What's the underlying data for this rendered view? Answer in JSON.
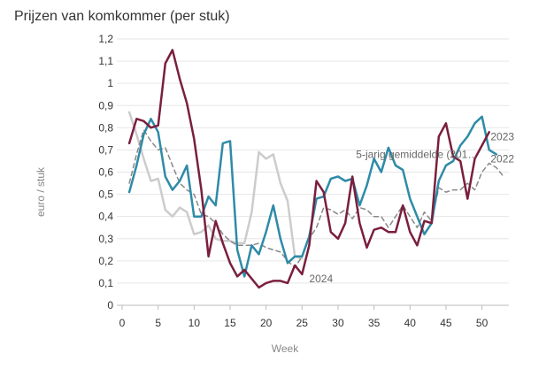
{
  "chart_data": {
    "type": "line",
    "title": "Prijzen van komkommer (per stuk)",
    "xlabel": "Week",
    "ylabel": "euro / stuk",
    "xlim": [
      0,
      53
    ],
    "ylim": [
      0,
      1.2
    ],
    "x_ticks": [
      0,
      5,
      10,
      15,
      20,
      25,
      30,
      35,
      40,
      45,
      50
    ],
    "y_ticks": [
      0,
      0.1,
      0.2,
      0.3,
      0.4,
      0.5,
      0.6,
      0.7,
      0.8,
      0.9,
      1,
      1.1,
      1.2
    ],
    "y_tick_labels": [
      "0",
      "0,1",
      "0,2",
      "0,3",
      "0,4",
      "0,5",
      "0,6",
      "0,7",
      "0,8",
      "0,9",
      "1",
      "1,1",
      "1,2"
    ],
    "grid": "horizontal",
    "legend": "direct labels",
    "series": [
      {
        "name": "2024",
        "color": "#cccccc",
        "style": "solid",
        "label_text": "2024",
        "label_at": [
          26,
          0.12
        ],
        "points": [
          [
            1,
            0.87
          ],
          [
            2,
            0.77
          ],
          [
            3,
            0.66
          ],
          [
            4,
            0.56
          ],
          [
            5,
            0.57
          ],
          [
            6,
            0.43
          ],
          [
            7,
            0.4
          ],
          [
            8,
            0.44
          ],
          [
            9,
            0.42
          ],
          [
            10,
            0.32
          ],
          [
            11,
            0.33
          ],
          [
            12,
            0.36
          ],
          [
            13,
            0.3
          ],
          [
            14,
            0.29
          ],
          [
            15,
            0.29
          ],
          [
            16,
            0.28
          ],
          [
            17,
            0.28
          ],
          [
            18,
            0.42
          ],
          [
            19,
            0.69
          ],
          [
            20,
            0.66
          ],
          [
            21,
            0.68
          ],
          [
            22,
            0.55
          ],
          [
            23,
            0.47
          ],
          [
            24,
            0.22
          ],
          [
            25,
            0.21
          ]
        ]
      },
      {
        "name": "5-jarig gemiddelde (201…",
        "color": "#888888",
        "style": "dashed",
        "label_text": "5-jarig gemiddelde (201…",
        "label_at": [
          32.5,
          0.68
        ],
        "points": [
          [
            1,
            0.55
          ],
          [
            2,
            0.68
          ],
          [
            3,
            0.79
          ],
          [
            4,
            0.74
          ],
          [
            5,
            0.7
          ],
          [
            6,
            0.71
          ],
          [
            7,
            0.63
          ],
          [
            8,
            0.55
          ],
          [
            9,
            0.52
          ],
          [
            10,
            0.5
          ],
          [
            11,
            0.41
          ],
          [
            12,
            0.4
          ],
          [
            13,
            0.37
          ],
          [
            14,
            0.32
          ],
          [
            15,
            0.29
          ],
          [
            16,
            0.27
          ],
          [
            17,
            0.27
          ],
          [
            18,
            0.27
          ],
          [
            19,
            0.28
          ],
          [
            20,
            0.26
          ],
          [
            21,
            0.25
          ],
          [
            22,
            0.24
          ],
          [
            23,
            0.2
          ],
          [
            24,
            0.17
          ],
          [
            25,
            0.22
          ],
          [
            26,
            0.3
          ],
          [
            27,
            0.35
          ],
          [
            28,
            0.44
          ],
          [
            29,
            0.43
          ],
          [
            30,
            0.41
          ],
          [
            31,
            0.43
          ],
          [
            32,
            0.39
          ],
          [
            33,
            0.44
          ],
          [
            34,
            0.43
          ],
          [
            35,
            0.4
          ],
          [
            36,
            0.4
          ],
          [
            37,
            0.35
          ],
          [
            38,
            0.4
          ],
          [
            39,
            0.45
          ],
          [
            40,
            0.4
          ],
          [
            41,
            0.35
          ],
          [
            42,
            0.42
          ],
          [
            43,
            0.38
          ],
          [
            44,
            0.53
          ],
          [
            45,
            0.51
          ],
          [
            46,
            0.52
          ],
          [
            47,
            0.52
          ],
          [
            48,
            0.55
          ],
          [
            49,
            0.52
          ],
          [
            50,
            0.6
          ],
          [
            51,
            0.64
          ],
          [
            52,
            0.62
          ],
          [
            53,
            0.58
          ]
        ]
      },
      {
        "name": "2022",
        "color": "#2e8ba8",
        "style": "solid",
        "label_text": "2022",
        "label_at": [
          51.2,
          0.66
        ],
        "points": [
          [
            1,
            0.51
          ],
          [
            2,
            0.63
          ],
          [
            3,
            0.77
          ],
          [
            4,
            0.84
          ],
          [
            5,
            0.78
          ],
          [
            6,
            0.58
          ],
          [
            7,
            0.52
          ],
          [
            8,
            0.56
          ],
          [
            9,
            0.63
          ],
          [
            10,
            0.4
          ],
          [
            11,
            0.4
          ],
          [
            12,
            0.49
          ],
          [
            13,
            0.45
          ],
          [
            14,
            0.73
          ],
          [
            15,
            0.74
          ],
          [
            16,
            0.25
          ],
          [
            17,
            0.13
          ],
          [
            18,
            0.27
          ],
          [
            19,
            0.23
          ],
          [
            20,
            0.33
          ],
          [
            21,
            0.45
          ],
          [
            22,
            0.3
          ],
          [
            23,
            0.19
          ],
          [
            24,
            0.22
          ],
          [
            25,
            0.22
          ],
          [
            26,
            0.31
          ],
          [
            27,
            0.48
          ],
          [
            28,
            0.49
          ],
          [
            29,
            0.57
          ],
          [
            30,
            0.58
          ],
          [
            31,
            0.56
          ],
          [
            32,
            0.57
          ],
          [
            33,
            0.45
          ],
          [
            34,
            0.54
          ],
          [
            35,
            0.66
          ],
          [
            36,
            0.6
          ],
          [
            37,
            0.71
          ],
          [
            38,
            0.63
          ],
          [
            39,
            0.61
          ],
          [
            40,
            0.48
          ],
          [
            41,
            0.4
          ],
          [
            42,
            0.32
          ],
          [
            43,
            0.37
          ],
          [
            44,
            0.56
          ],
          [
            45,
            0.63
          ],
          [
            46,
            0.65
          ],
          [
            47,
            0.72
          ],
          [
            48,
            0.76
          ],
          [
            49,
            0.82
          ],
          [
            50,
            0.85
          ],
          [
            51,
            0.7
          ],
          [
            52,
            0.68
          ]
        ]
      },
      {
        "name": "2023",
        "color": "#7a1f3d",
        "style": "solid",
        "label_text": "2023",
        "label_at": [
          51.2,
          0.76
        ],
        "points": [
          [
            1,
            0.73
          ],
          [
            2,
            0.84
          ],
          [
            3,
            0.83
          ],
          [
            4,
            0.8
          ],
          [
            5,
            0.81
          ],
          [
            6,
            1.09
          ],
          [
            7,
            1.15
          ],
          [
            8,
            1.02
          ],
          [
            9,
            0.91
          ],
          [
            10,
            0.75
          ],
          [
            11,
            0.52
          ],
          [
            12,
            0.22
          ],
          [
            13,
            0.38
          ],
          [
            14,
            0.28
          ],
          [
            15,
            0.19
          ],
          [
            16,
            0.13
          ],
          [
            17,
            0.16
          ],
          [
            18,
            0.12
          ],
          [
            19,
            0.08
          ],
          [
            20,
            0.1
          ],
          [
            21,
            0.11
          ],
          [
            22,
            0.11
          ],
          [
            23,
            0.1
          ],
          [
            24,
            0.18
          ],
          [
            25,
            0.14
          ],
          [
            26,
            0.27
          ],
          [
            27,
            0.56
          ],
          [
            28,
            0.51
          ],
          [
            29,
            0.33
          ],
          [
            30,
            0.3
          ],
          [
            31,
            0.37
          ],
          [
            32,
            0.58
          ],
          [
            33,
            0.37
          ],
          [
            34,
            0.26
          ],
          [
            35,
            0.34
          ],
          [
            36,
            0.35
          ],
          [
            37,
            0.33
          ],
          [
            38,
            0.33
          ],
          [
            39,
            0.45
          ],
          [
            40,
            0.33
          ],
          [
            41,
            0.27
          ],
          [
            42,
            0.38
          ],
          [
            43,
            0.37
          ],
          [
            44,
            0.76
          ],
          [
            45,
            0.82
          ],
          [
            46,
            0.67
          ],
          [
            47,
            0.65
          ],
          [
            48,
            0.48
          ],
          [
            49,
            0.66
          ],
          [
            50,
            0.72
          ],
          [
            51,
            0.78
          ]
        ]
      }
    ]
  }
}
